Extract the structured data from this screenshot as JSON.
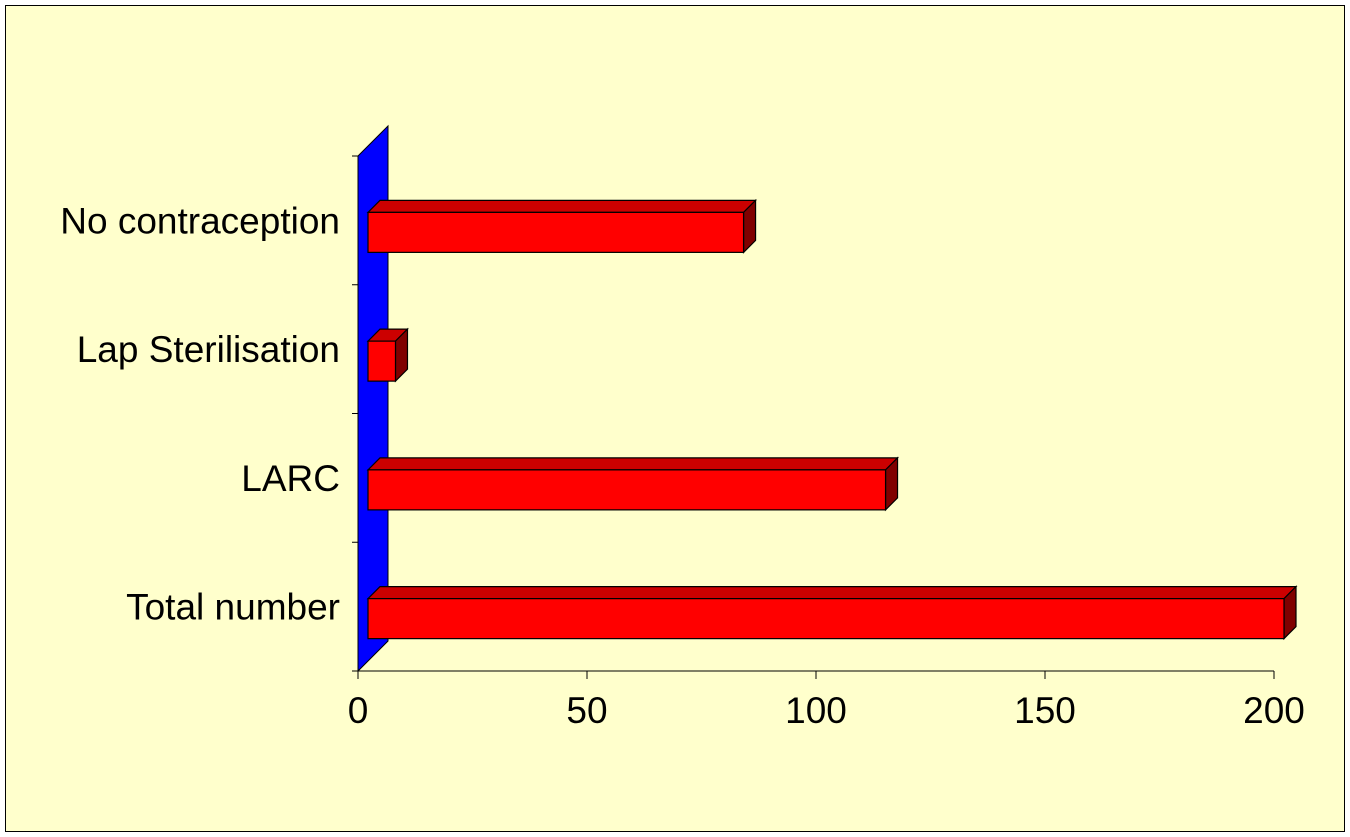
{
  "chart_data": {
    "type": "bar",
    "orientation": "horizontal",
    "style": "3d",
    "categories": [
      "Total number",
      "LARC",
      "Lap Sterilisation",
      "No contraception"
    ],
    "values": [
      200,
      113,
      6,
      82
    ],
    "xlim": [
      0,
      200
    ],
    "x_ticks": [
      0,
      50,
      100,
      150,
      200
    ],
    "title": "",
    "xlabel": "",
    "ylabel": "",
    "grid": false,
    "legend": "none"
  },
  "colors": {
    "background": "#FFFFCC",
    "bar_front": "#FF0000",
    "bar_top": "#CC0000",
    "bar_side": "#800000",
    "wall": "#0000FF"
  }
}
